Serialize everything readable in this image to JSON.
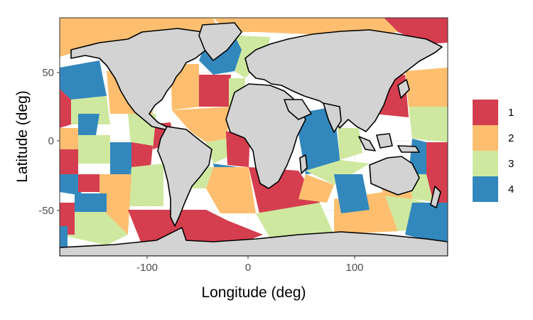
{
  "chart_data": {
    "type": "map",
    "xlabel": "Longitude (deg)",
    "ylabel": "Latitude (deg)",
    "xlim": [
      -180,
      180
    ],
    "ylim": [
      -85,
      90
    ],
    "xticks": [
      -100,
      0,
      100
    ],
    "yticks": [
      50,
      0,
      -50
    ],
    "xtick_labels": [
      "-100",
      "0",
      "100"
    ],
    "ytick_labels": [
      "50",
      "0",
      "-50"
    ],
    "grid": true,
    "legend_position": "right",
    "legend": [
      {
        "label": "1",
        "color": "#d53e4f"
      },
      {
        "label": "2",
        "color": "#fdbf6f"
      },
      {
        "label": "3",
        "color": "#cfe8a0"
      },
      {
        "label": "4",
        "color": "#3288bd"
      }
    ],
    "land_color": "#d3d3d3",
    "border_color": "#000000"
  }
}
